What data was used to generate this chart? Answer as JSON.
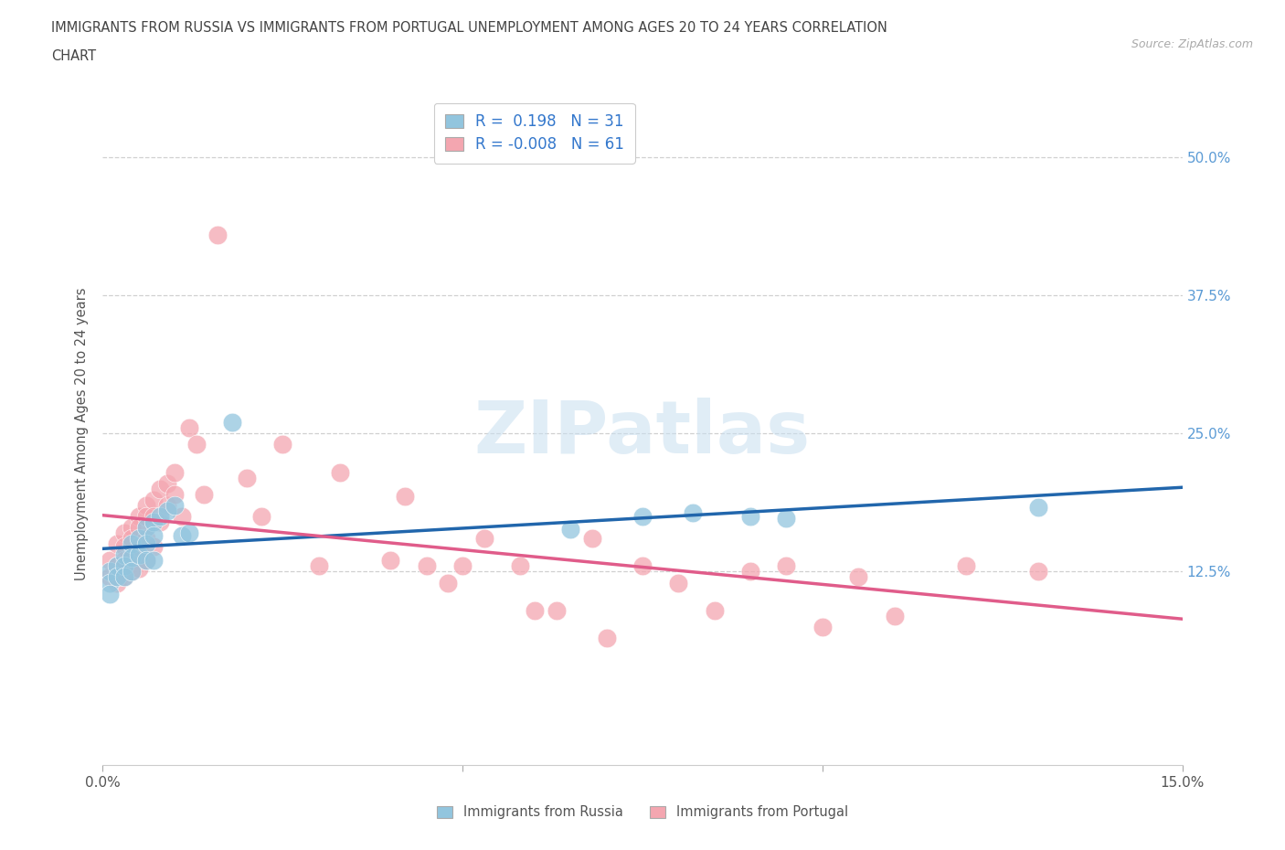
{
  "title_line1": "IMMIGRANTS FROM RUSSIA VS IMMIGRANTS FROM PORTUGAL UNEMPLOYMENT AMONG AGES 20 TO 24 YEARS CORRELATION",
  "title_line2": "CHART",
  "source": "Source: ZipAtlas.com",
  "ylabel": "Unemployment Among Ages 20 to 24 years",
  "russia_R": 0.198,
  "russia_N": 31,
  "portugal_R": -0.008,
  "portugal_N": 61,
  "xlim": [
    0.0,
    0.15
  ],
  "ylim": [
    -0.05,
    0.55
  ],
  "yticks": [
    0.0,
    0.125,
    0.25,
    0.375,
    0.5
  ],
  "ytick_labels": [
    "",
    "12.5%",
    "25.0%",
    "37.5%",
    "50.0%"
  ],
  "xticks": [
    0.0,
    0.05,
    0.1,
    0.15
  ],
  "xtick_labels": [
    "0.0%",
    "",
    "",
    "15.0%"
  ],
  "russia_color": "#92c5de",
  "portugal_color": "#f4a6b0",
  "russia_line_color": "#2166ac",
  "portugal_line_color": "#e05c8a",
  "background_color": "#ffffff",
  "watermark": "ZIPatlas",
  "russia_x": [
    0.001,
    0.001,
    0.001,
    0.002,
    0.002,
    0.003,
    0.003,
    0.003,
    0.004,
    0.004,
    0.004,
    0.005,
    0.005,
    0.006,
    0.006,
    0.006,
    0.007,
    0.007,
    0.007,
    0.008,
    0.009,
    0.01,
    0.011,
    0.012,
    0.018,
    0.065,
    0.075,
    0.082,
    0.09,
    0.095,
    0.13
  ],
  "russia_y": [
    0.125,
    0.115,
    0.105,
    0.13,
    0.12,
    0.14,
    0.13,
    0.12,
    0.15,
    0.138,
    0.125,
    0.155,
    0.14,
    0.165,
    0.15,
    0.135,
    0.17,
    0.158,
    0.135,
    0.175,
    0.18,
    0.185,
    0.158,
    0.16,
    0.26,
    0.163,
    0.175,
    0.178,
    0.175,
    0.173,
    0.183
  ],
  "portugal_x": [
    0.001,
    0.001,
    0.002,
    0.002,
    0.002,
    0.003,
    0.003,
    0.003,
    0.003,
    0.004,
    0.004,
    0.004,
    0.004,
    0.005,
    0.005,
    0.005,
    0.005,
    0.006,
    0.006,
    0.006,
    0.006,
    0.007,
    0.007,
    0.007,
    0.008,
    0.008,
    0.009,
    0.009,
    0.01,
    0.01,
    0.011,
    0.012,
    0.013,
    0.014,
    0.016,
    0.02,
    0.022,
    0.025,
    0.03,
    0.033,
    0.04,
    0.042,
    0.045,
    0.048,
    0.05,
    0.053,
    0.058,
    0.06,
    0.063,
    0.068,
    0.07,
    0.075,
    0.08,
    0.085,
    0.09,
    0.095,
    0.1,
    0.105,
    0.11,
    0.12,
    0.13
  ],
  "portugal_y": [
    0.135,
    0.12,
    0.15,
    0.13,
    0.115,
    0.16,
    0.148,
    0.135,
    0.12,
    0.165,
    0.155,
    0.14,
    0.125,
    0.175,
    0.165,
    0.148,
    0.128,
    0.185,
    0.175,
    0.155,
    0.135,
    0.19,
    0.175,
    0.148,
    0.2,
    0.17,
    0.205,
    0.185,
    0.215,
    0.195,
    0.175,
    0.255,
    0.24,
    0.195,
    0.43,
    0.21,
    0.175,
    0.24,
    0.13,
    0.215,
    0.135,
    0.193,
    0.13,
    0.115,
    0.13,
    0.155,
    0.13,
    0.09,
    0.09,
    0.155,
    0.065,
    0.13,
    0.115,
    0.09,
    0.125,
    0.13,
    0.075,
    0.12,
    0.085,
    0.13,
    0.125
  ]
}
